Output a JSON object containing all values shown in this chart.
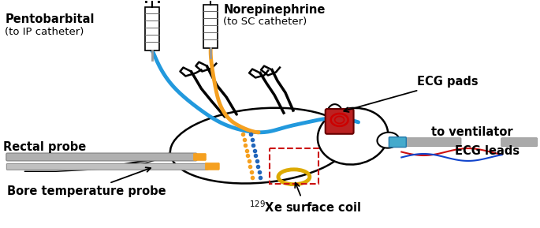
{
  "bg_color": "#ffffff",
  "fig_width": 6.85,
  "fig_height": 2.89,
  "labels": {
    "pentobarbital_line1": "Pentobarbital",
    "pentobarbital_line2": "(to IP catheter)",
    "norepinephrine_line1": "Norepinephrine",
    "norepinephrine_line2": "(to SC catheter)",
    "ecg_pads": "ECG pads",
    "rectal_probe": "Rectal probe",
    "bore_temp": "Bore temperature probe",
    "xe_coil": "$^{129}$Xe surface coil",
    "ventilator": "to ventilator",
    "ecg_leads": "ECG leads"
  },
  "colors": {
    "blue_tube": "#2299dd",
    "orange_tube": "#f5a020",
    "red_ecg_pad": "#bb2222",
    "gray_probe": "#aaaaaa",
    "gray_dark": "#888888",
    "yellow_coil": "#ddaa00",
    "orange_dotted": "#f5a020",
    "blue_dotted": "#2266bb",
    "red_ecg_lead": "#cc1111",
    "blue_ecg_lead": "#1144cc",
    "teal_vent": "#44aacc",
    "black": "#000000",
    "white": "#ffffff"
  }
}
